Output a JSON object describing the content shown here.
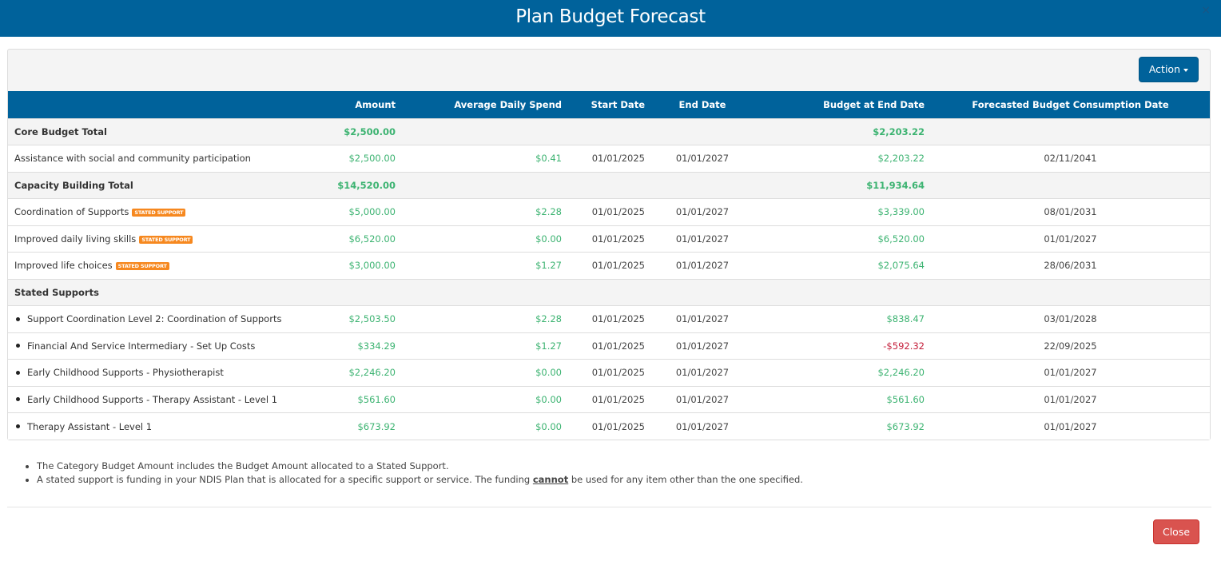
{
  "modal": {
    "title": "Plan Budget Forecast",
    "close_icon": "×"
  },
  "toolbar": {
    "action_label": "Action"
  },
  "table": {
    "columns": [
      "",
      "Amount",
      "Average Daily Spend",
      "Start Date",
      "End Date",
      "Budget at End Date",
      "Forecasted Budget Consumption Date"
    ],
    "rows": [
      {
        "type": "group",
        "name": "Core Budget Total",
        "amount": "$2,500.00",
        "avg": "",
        "start": "",
        "end": "",
        "budget_end": "$2,203.22",
        "forecast": ""
      },
      {
        "type": "item",
        "name": "Assistance with social and community participation",
        "badge": "",
        "amount": "$2,500.00",
        "avg": "$0.41",
        "start": "01/01/2025",
        "end": "01/01/2027",
        "budget_end": "$2,203.22",
        "forecast": "02/11/2041"
      },
      {
        "type": "group",
        "name": "Capacity Building Total",
        "amount": "$14,520.00",
        "avg": "",
        "start": "",
        "end": "",
        "budget_end": "$11,934.64",
        "forecast": ""
      },
      {
        "type": "item",
        "name": "Coordination of Supports",
        "badge": "STATED SUPPORT",
        "amount": "$5,000.00",
        "avg": "$2.28",
        "start": "01/01/2025",
        "end": "01/01/2027",
        "budget_end": "$3,339.00",
        "forecast": "08/01/2031"
      },
      {
        "type": "item",
        "name": "Improved daily living skills",
        "badge": "STATED SUPPORT",
        "amount": "$6,520.00",
        "avg": "$0.00",
        "start": "01/01/2025",
        "end": "01/01/2027",
        "budget_end": "$6,520.00",
        "forecast": "01/01/2027"
      },
      {
        "type": "item",
        "name": "Improved life choices",
        "badge": "STATED SUPPORT",
        "amount": "$3,000.00",
        "avg": "$1.27",
        "start": "01/01/2025",
        "end": "01/01/2027",
        "budget_end": "$2,075.64",
        "forecast": "28/06/2031"
      },
      {
        "type": "group",
        "name": "Stated Supports",
        "amount": "",
        "avg": "",
        "start": "",
        "end": "",
        "budget_end": "",
        "forecast": ""
      },
      {
        "type": "bullet",
        "name": "Support Coordination Level 2: Coordination of Supports",
        "amount": "$2,503.50",
        "avg": "$2.28",
        "start": "01/01/2025",
        "end": "01/01/2027",
        "budget_end": "$838.47",
        "forecast": "03/01/2028"
      },
      {
        "type": "bullet",
        "name": "Financial And Service Intermediary - Set Up Costs",
        "amount": "$334.29",
        "avg": "$1.27",
        "start": "01/01/2025",
        "end": "01/01/2027",
        "budget_end": "-$592.32",
        "negative": true,
        "forecast": "22/09/2025"
      },
      {
        "type": "bullet",
        "name": "Early Childhood Supports - Physiotherapist",
        "amount": "$2,246.20",
        "avg": "$0.00",
        "start": "01/01/2025",
        "end": "01/01/2027",
        "budget_end": "$2,246.20",
        "forecast": "01/01/2027"
      },
      {
        "type": "bullet",
        "name": "Early Childhood Supports - Therapy Assistant - Level 1",
        "amount": "$561.60",
        "avg": "$0.00",
        "start": "01/01/2025",
        "end": "01/01/2027",
        "budget_end": "$561.60",
        "forecast": "01/01/2027"
      },
      {
        "type": "bullet",
        "name": "Therapy Assistant - Level 1",
        "amount": "$673.92",
        "avg": "$0.00",
        "start": "01/01/2025",
        "end": "01/01/2027",
        "budget_end": "$673.92",
        "forecast": "01/01/2027"
      }
    ]
  },
  "notes": {
    "line1": "The Category Budget Amount includes the Budget Amount allocated to a Stated Support.",
    "line2_before": "A stated support is funding in your NDIS Plan that is allocated for a specific support or service. The funding ",
    "line2_emph": "cannot",
    "line2_after": " be used for any item other than the one specified."
  },
  "footer": {
    "close_label": "Close"
  },
  "colors": {
    "brand": "#00629b",
    "positive": "#3cb371",
    "negative": "#c41e3a",
    "badge": "#f6881f",
    "danger": "#d9534f"
  }
}
